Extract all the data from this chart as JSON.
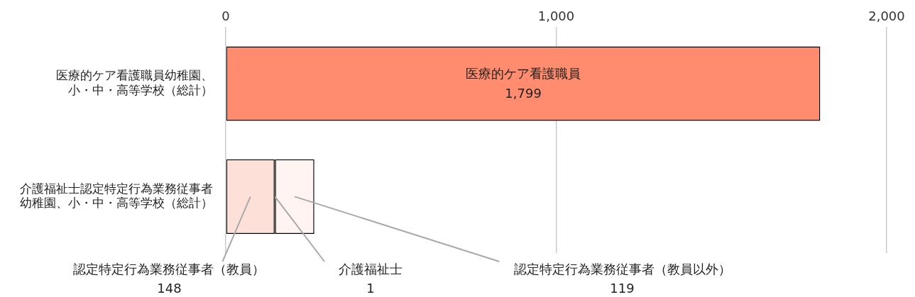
{
  "chart_data": {
    "type": "bar",
    "orientation": "horizontal",
    "stacked": true,
    "categories": [
      "医療的ケア看護職員幼稚園、小・中・高等学校（総計）",
      "介護福祉士認定特定行為業務従事者幼稚園、小・中・高等学校（総計）"
    ],
    "series": [
      {
        "name": "医療的ケア看護職員",
        "color": "#ff8c6e",
        "values": [
          1799,
          null
        ],
        "value_labels": [
          "1,799",
          null
        ]
      },
      {
        "color": "#fde0d8",
        "values": [
          null,
          148
        ]
      },
      {
        "color": "#000000",
        "values": [
          null,
          1
        ]
      },
      {
        "color": "#fff4f1",
        "values": [
          null,
          119
        ]
      }
    ],
    "annotations": [
      "認定特定行為業務従事者（教員）",
      "148",
      {
        "text": "介護福祉士",
        "x": 149,
        "y": "介護福祉士認定特定行為業務従事者幼稚園、小・中・高等学校（総計）"
      },
      "1",
      "認定特定行為業務従事者（教員以外）",
      "119"
    ],
    "xlim": [
      0,
      2000
    ],
    "xticks": [
      0,
      {
        "value": 1000,
        "label": "1,000"
      },
      {
        "value": 2000,
        "label": "2,000"
      }
    ],
    "grid": "x",
    "legend": false
  }
}
